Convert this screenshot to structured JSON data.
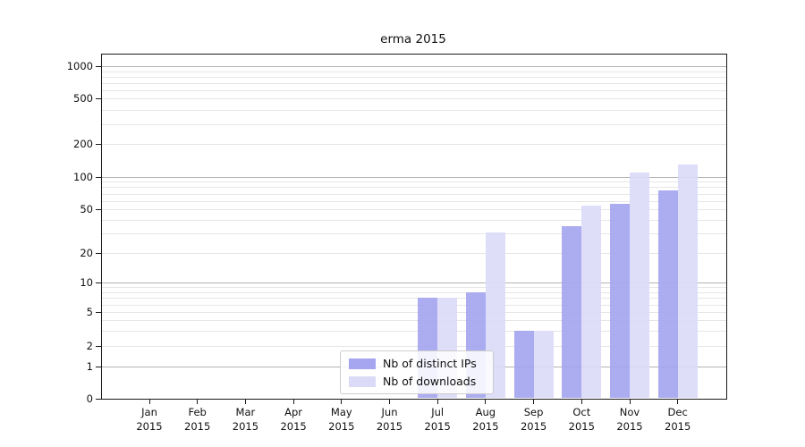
{
  "title": "erma 2015",
  "chart_data": {
    "type": "bar",
    "title": "erma 2015",
    "yscale": "symlog",
    "grid": "on",
    "legend_position": "lower center-left inside plot",
    "y_ticks": [
      0,
      1,
      2,
      5,
      10,
      20,
      50,
      100,
      200,
      500,
      1000
    ],
    "ylim": [
      0,
      1300
    ],
    "categories": [
      {
        "month": "Jan",
        "year": "2015"
      },
      {
        "month": "Feb",
        "year": "2015"
      },
      {
        "month": "Mar",
        "year": "2015"
      },
      {
        "month": "Apr",
        "year": "2015"
      },
      {
        "month": "May",
        "year": "2015"
      },
      {
        "month": "Jun",
        "year": "2015"
      },
      {
        "month": "Jul",
        "year": "2015"
      },
      {
        "month": "Aug",
        "year": "2015"
      },
      {
        "month": "Sep",
        "year": "2015"
      },
      {
        "month": "Oct",
        "year": "2015"
      },
      {
        "month": "Nov",
        "year": "2015"
      },
      {
        "month": "Dec",
        "year": "2015"
      }
    ],
    "series": [
      {
        "name": "Nb of distinct IPs",
        "color": "#a5a5f0",
        "values": [
          0,
          0,
          0,
          0,
          0,
          0,
          7,
          8,
          3,
          35,
          56,
          75
        ]
      },
      {
        "name": "Nb of downloads",
        "color": "#dbdbf8",
        "values": [
          0,
          0,
          0,
          0,
          0,
          0,
          7,
          31,
          3,
          54,
          110,
          130
        ]
      }
    ]
  }
}
